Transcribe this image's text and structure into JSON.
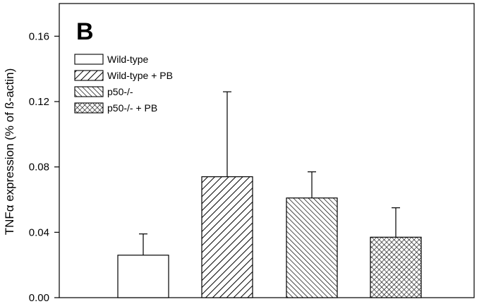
{
  "chart_data": {
    "type": "bar",
    "panel_label": "B",
    "ylabel": "TNFα expression (% of ß-actin)",
    "xlabel": "",
    "ylim": [
      0,
      0.18
    ],
    "yticks": [
      "0.00",
      "0.04",
      "0.08",
      "0.12",
      "0.16"
    ],
    "ytick_values": [
      0,
      0.04,
      0.08,
      0.12,
      0.16
    ],
    "grid": false,
    "legend_position": "top-left",
    "categories": [
      "Wild-type",
      "Wild-type + PB",
      "p50-/-",
      "p50-/- + PB"
    ],
    "values": [
      0.026,
      0.074,
      0.061,
      0.037
    ],
    "errors": [
      0.013,
      0.052,
      0.016,
      0.018
    ],
    "patterns": [
      "none",
      "diagonal-wide",
      "diagonal-narrow",
      "crosshatch"
    ]
  }
}
